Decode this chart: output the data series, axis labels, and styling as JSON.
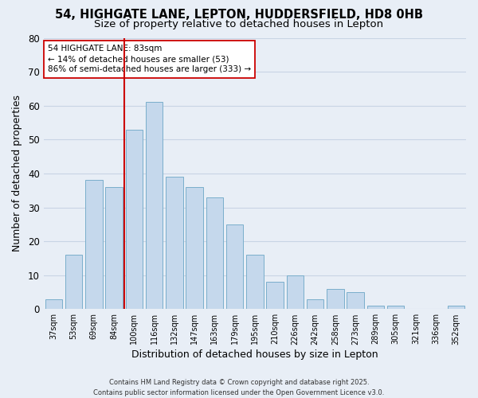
{
  "title": "54, HIGHGATE LANE, LEPTON, HUDDERSFIELD, HD8 0HB",
  "subtitle": "Size of property relative to detached houses in Lepton",
  "xlabel": "Distribution of detached houses by size in Lepton",
  "ylabel": "Number of detached properties",
  "bar_labels": [
    "37sqm",
    "53sqm",
    "69sqm",
    "84sqm",
    "100sqm",
    "116sqm",
    "132sqm",
    "147sqm",
    "163sqm",
    "179sqm",
    "195sqm",
    "210sqm",
    "226sqm",
    "242sqm",
    "258sqm",
    "273sqm",
    "289sqm",
    "305sqm",
    "321sqm",
    "336sqm",
    "352sqm"
  ],
  "bar_values": [
    3,
    16,
    38,
    36,
    53,
    61,
    39,
    36,
    33,
    25,
    16,
    8,
    10,
    3,
    6,
    5,
    1,
    1,
    0,
    0,
    1
  ],
  "bar_color": "#c5d8ec",
  "bar_edge_color": "#7aaecb",
  "vline_x_index": 3,
  "vline_color": "#cc0000",
  "annotation_text": "54 HIGHGATE LANE: 83sqm\n← 14% of detached houses are smaller (53)\n86% of semi-detached houses are larger (333) →",
  "annotation_box_color": "#ffffff",
  "annotation_box_edge": "#cc0000",
  "ylim": [
    0,
    80
  ],
  "yticks": [
    0,
    10,
    20,
    30,
    40,
    50,
    60,
    70,
    80
  ],
  "grid_color": "#c8d4e4",
  "background_color": "#e8eef6",
  "footer_line1": "Contains HM Land Registry data © Crown copyright and database right 2025.",
  "footer_line2": "Contains public sector information licensed under the Open Government Licence v3.0.",
  "title_fontsize": 10.5,
  "subtitle_fontsize": 9.5
}
